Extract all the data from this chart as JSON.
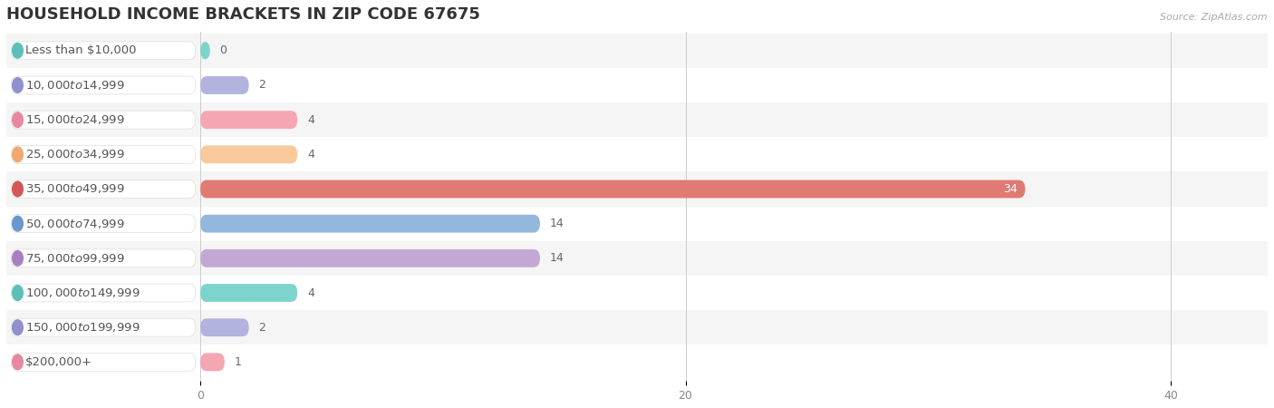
{
  "title": "HOUSEHOLD INCOME BRACKETS IN ZIP CODE 67675",
  "source": "Source: ZipAtlas.com",
  "categories": [
    "Less than $10,000",
    "$10,000 to $14,999",
    "$15,000 to $24,999",
    "$25,000 to $34,999",
    "$35,000 to $49,999",
    "$50,000 to $74,999",
    "$75,000 to $99,999",
    "$100,000 to $149,999",
    "$150,000 to $199,999",
    "$200,000+"
  ],
  "values": [
    0,
    2,
    4,
    4,
    34,
    14,
    14,
    4,
    2,
    1
  ],
  "bar_colors": [
    "#7DD4CC",
    "#B3B3E0",
    "#F4A7B3",
    "#F8C99A",
    "#E07A72",
    "#93B8DC",
    "#C3A8D4",
    "#7DD4CC",
    "#B3B3E0",
    "#F4A7B3"
  ],
  "dot_colors": [
    "#5CBFB8",
    "#9090CC",
    "#E888A0",
    "#F0A870",
    "#D05858",
    "#6898CC",
    "#A880C0",
    "#5CBFB8",
    "#9090CC",
    "#E888A0"
  ],
  "background_color": "#ffffff",
  "row_bg_even": "#f5f5f5",
  "row_bg_odd": "#ffffff",
  "xlim": [
    -8,
    44
  ],
  "data_xlim": [
    0,
    44
  ],
  "xticks": [
    0,
    20,
    40
  ],
  "title_fontsize": 13,
  "label_fontsize": 9.5,
  "value_fontsize": 9,
  "bar_height": 0.52
}
